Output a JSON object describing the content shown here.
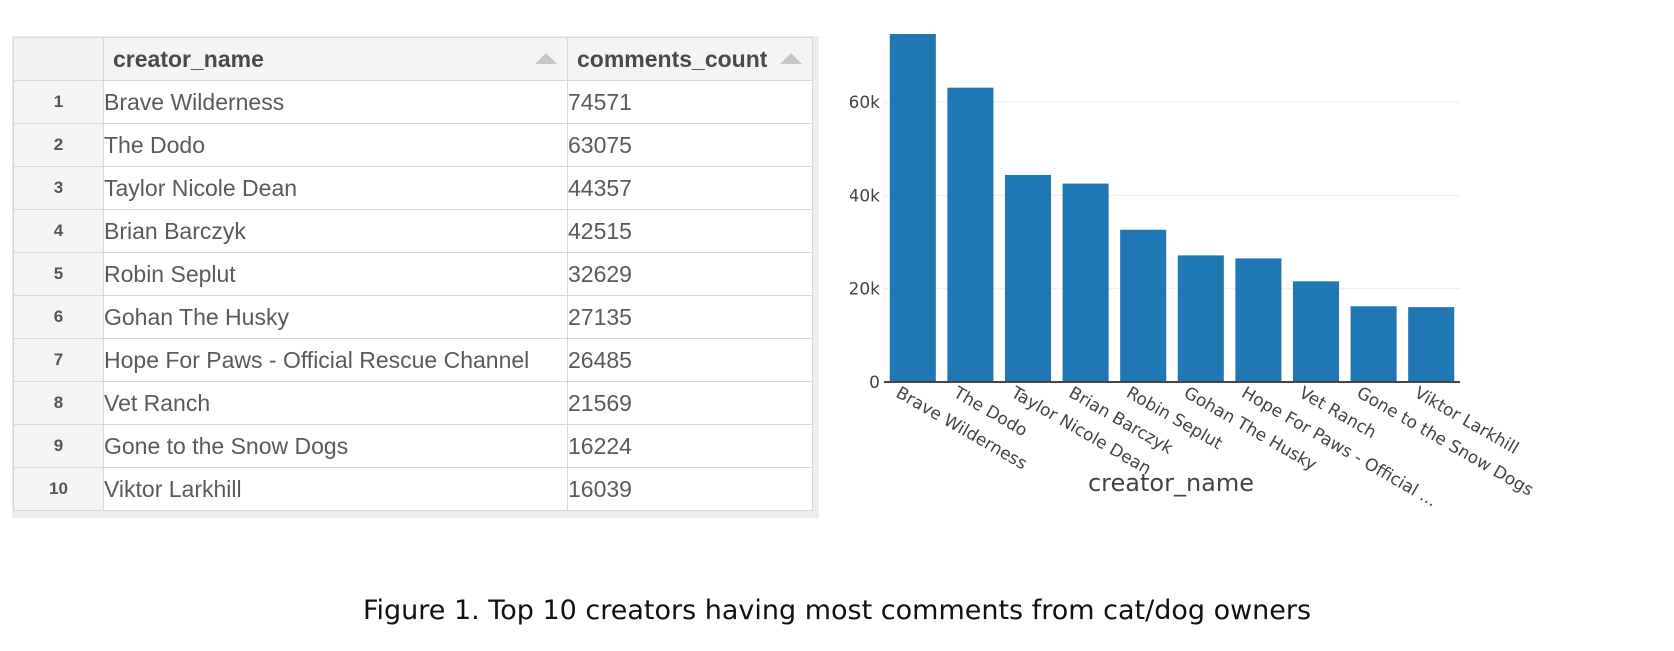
{
  "table": {
    "columns": [
      "creator_name",
      "comments_count"
    ],
    "rows": [
      {
        "index": "1",
        "creator_name": "Brave Wilderness",
        "comments_count": "74571"
      },
      {
        "index": "2",
        "creator_name": "The Dodo",
        "comments_count": "63075"
      },
      {
        "index": "3",
        "creator_name": "Taylor Nicole Dean",
        "comments_count": "44357"
      },
      {
        "index": "4",
        "creator_name": "Brian Barczyk",
        "comments_count": "42515"
      },
      {
        "index": "5",
        "creator_name": "Robin Seplut",
        "comments_count": "32629"
      },
      {
        "index": "6",
        "creator_name": "Gohan The Husky",
        "comments_count": "27135"
      },
      {
        "index": "7",
        "creator_name": "Hope For Paws - Official Rescue Channel",
        "comments_count": "26485"
      },
      {
        "index": "8",
        "creator_name": "Vet Ranch",
        "comments_count": "21569"
      },
      {
        "index": "9",
        "creator_name": "Gone to the Snow Dogs",
        "comments_count": "16224"
      },
      {
        "index": "10",
        "creator_name": "Viktor Larkhill",
        "comments_count": "16039"
      }
    ]
  },
  "chart_data": {
    "type": "bar",
    "categories": [
      "Brave Wilderness",
      "The Dodo",
      "Taylor Nicole Dean",
      "Brian Barczyk",
      "Robin Seplut",
      "Gohan The Husky",
      "Hope For Paws - Official Rescue Channel",
      "Vet Ranch",
      "Gone to the Snow Dogs",
      "Viktor Larkhill"
    ],
    "tick_labels": [
      "Brave Wilderness",
      "The Dodo",
      "Taylor Nicole Dean",
      "Brian Barczyk",
      "Robin Seplut",
      "Gohan The Husky",
      "Hope For Paws - Official ...",
      "Vet Ranch",
      "Gone to the Snow Dogs",
      "Viktor Larkhill"
    ],
    "values": [
      74571,
      63075,
      44357,
      42515,
      32629,
      27135,
      26485,
      21569,
      16224,
      16039
    ],
    "xlabel": "creator_name",
    "ylabel": "comments_count",
    "yticks": [
      0,
      20000,
      40000,
      60000
    ],
    "ytick_labels": [
      "0",
      "20k",
      "40k",
      "60k"
    ],
    "ylim": [
      0,
      74571
    ],
    "bar_color": "#1f77b4",
    "grid": true
  },
  "caption": "Figure 1. Top 10 creators having most comments from cat/dog owners"
}
